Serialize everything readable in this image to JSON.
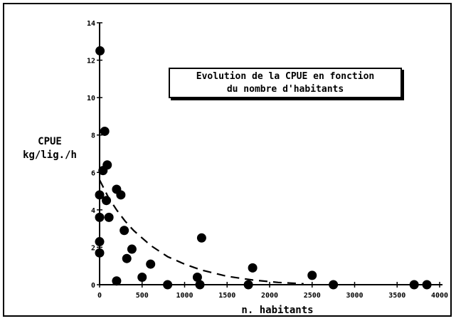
{
  "chart_data": {
    "type": "scatter",
    "title_lines": [
      "Evolution de la CPUE en fonction",
      "du nombre d'habitants"
    ],
    "xlabel": "n. habitants",
    "ylabel_lines": [
      "CPUE",
      "kg/lig./h"
    ],
    "xlim": [
      0,
      4000
    ],
    "ylim": [
      0,
      14
    ],
    "x_ticks": [
      "0",
      "500",
      "1000",
      "1500",
      "2000",
      "2500",
      "3000",
      "3500",
      "4000"
    ],
    "y_ticks": [
      "0",
      "2",
      "4",
      "6",
      "8",
      "10",
      "12",
      "14"
    ],
    "grid": false,
    "series": [
      {
        "marker": "filled-circle",
        "points": [
          [
            5,
            12.5
          ],
          [
            60,
            8.2
          ],
          [
            40,
            6.1
          ],
          [
            90,
            6.4
          ],
          [
            0,
            4.8
          ],
          [
            0,
            3.6
          ],
          [
            0,
            2.3
          ],
          [
            0,
            1.7
          ],
          [
            80,
            4.5
          ],
          [
            110,
            3.6
          ],
          [
            200,
            5.1
          ],
          [
            250,
            4.8
          ],
          [
            290,
            2.9
          ],
          [
            320,
            1.4
          ],
          [
            380,
            1.9
          ],
          [
            600,
            1.1
          ],
          [
            500,
            0.4
          ],
          [
            200,
            0.2
          ],
          [
            800,
            0.0
          ],
          [
            1150,
            0.4
          ],
          [
            1200,
            2.5
          ],
          [
            1180,
            0.0
          ],
          [
            1750,
            0.0
          ],
          [
            1800,
            0.9
          ],
          [
            2500,
            0.5
          ],
          [
            2750,
            0.0
          ],
          [
            3700,
            0.0
          ],
          [
            3850,
            0.0
          ]
        ]
      }
    ],
    "fit_curve": {
      "style": "dashed",
      "points": [
        [
          0,
          5.6
        ],
        [
          100,
          4.7
        ],
        [
          200,
          4.0
        ],
        [
          300,
          3.4
        ],
        [
          400,
          2.9
        ],
        [
          600,
          2.1
        ],
        [
          800,
          1.5
        ],
        [
          1000,
          1.1
        ],
        [
          1200,
          0.78
        ],
        [
          1500,
          0.45
        ],
        [
          1800,
          0.25
        ],
        [
          2100,
          0.12
        ],
        [
          2400,
          0.05
        ]
      ]
    }
  }
}
